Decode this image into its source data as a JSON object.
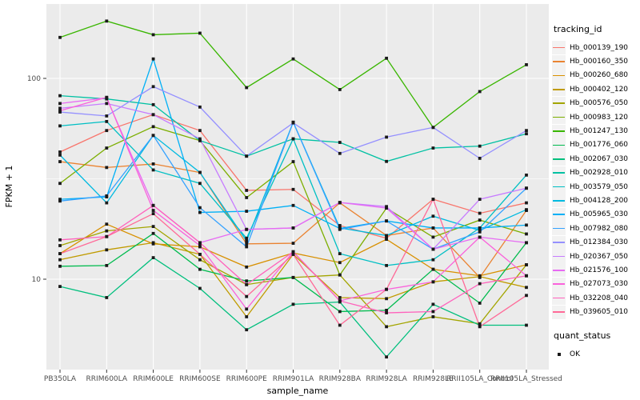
{
  "figure": {
    "panel_bg": "#EBEBEB",
    "grid_color": "#FFFFFF",
    "tick_mark_color": "#333333",
    "tick_label_color": "#4D4D4D",
    "axis_title_color": "#000000",
    "point_color": "#1A1A1A"
  },
  "chart_data": {
    "type": "line",
    "title": "",
    "xlabel": "sample_name",
    "ylabel": "FPKM + 1",
    "y_scale": "log10",
    "y_tick_labels": [
      "100",
      "10"
    ],
    "y_ticks": [
      100,
      10
    ],
    "y_minor_ticks": [
      31.6
    ],
    "ylim": [
      3.5,
      235
    ],
    "grid": true,
    "marker": "square",
    "legend_position": "right",
    "categories": [
      "PB350LA",
      "RRIM600LA",
      "RRIM600LE",
      "RRIM600SE",
      "RRIM600PE",
      "RRIM901LA",
      "RRIM928BA",
      "RRIM928LA",
      "RRIM928LE",
      "RRII105LA_Control",
      "RRII105LA_Stressed"
    ],
    "series": [
      {
        "name": "Hb_000139_190",
        "color": "#F8766D",
        "values": [
          43,
          55,
          66,
          55,
          27.7,
          28,
          18.5,
          16,
          25,
          21.3,
          24
        ]
      },
      {
        "name": "Hb_000160_350",
        "color": "#EA8331",
        "values": [
          38.5,
          36,
          37.5,
          34,
          15,
          15.1,
          24,
          16.5,
          18,
          10.2,
          22
        ]
      },
      {
        "name": "Hb_000260_680",
        "color": "#D89000",
        "values": [
          13.4,
          18.8,
          15,
          14.5,
          11.5,
          13.5,
          12.1,
          15.8,
          11.2,
          10.4,
          11.8
        ]
      },
      {
        "name": "Hb_000402_120",
        "color": "#C09B00",
        "values": [
          12.5,
          14,
          15.2,
          13.3,
          6.5,
          13.3,
          8.1,
          8,
          9.7,
          10.3,
          9.1
        ]
      },
      {
        "name": "Hb_000576_050",
        "color": "#A3A500",
        "values": [
          14.7,
          17.4,
          18.3,
          12.5,
          9.4,
          10.2,
          10.5,
          5.8,
          6.5,
          6,
          11.8
        ]
      },
      {
        "name": "Hb_000983_120",
        "color": "#7CAE00",
        "values": [
          30,
          45,
          57.5,
          49,
          25.5,
          38.5,
          10.5,
          22.6,
          16.2,
          19.7,
          16.8
        ]
      },
      {
        "name": "Hb_001247_130",
        "color": "#39B600",
        "values": [
          160,
          193,
          165,
          168,
          90,
          125,
          88,
          126,
          57,
          86,
          117
        ]
      },
      {
        "name": "Hb_001776_060",
        "color": "#00BB4E",
        "values": [
          11.6,
          11.7,
          16.9,
          11.2,
          9.8,
          10.2,
          6.9,
          7,
          11.2,
          7.6,
          15.2
        ]
      },
      {
        "name": "Hb_002067_030",
        "color": "#00BF7D",
        "values": [
          9.2,
          8.1,
          12.8,
          9,
          5.6,
          7.5,
          7.7,
          4.1,
          7.5,
          5.9,
          5.9
        ]
      },
      {
        "name": "Hb_002928_010",
        "color": "#00C1A3",
        "values": [
          82,
          79,
          74,
          49,
          41,
          50,
          48,
          38.6,
          45,
          46,
          53
        ]
      },
      {
        "name": "Hb_003579_050",
        "color": "#00BFC4",
        "values": [
          58,
          61,
          35,
          30,
          16,
          50,
          13.4,
          11.7,
          12.5,
          18,
          33
        ]
      },
      {
        "name": "Hb_004128_200",
        "color": "#00BAE0",
        "values": [
          41.5,
          24,
          52,
          34,
          15.5,
          60.5,
          18,
          16.5,
          20.6,
          17.5,
          22.2
        ]
      },
      {
        "name": "Hb_005965_030",
        "color": "#00B0F6",
        "values": [
          25,
          25.7,
          125,
          21.5,
          21.8,
          23.3,
          17.9,
          19.5,
          18,
          18,
          18.6
        ]
      },
      {
        "name": "Hb_007982_080",
        "color": "#35A2FF",
        "values": [
          24.5,
          26,
          52,
          22.7,
          14.5,
          60.5,
          17.7,
          19.5,
          14.1,
          17.2,
          28.4
        ]
      },
      {
        "name": "Hb_012384_030",
        "color": "#9590FF",
        "values": [
          68,
          65,
          91,
          72,
          41,
          60,
          42.3,
          51,
          57,
          40,
          55
        ]
      },
      {
        "name": "Hb_020367_050",
        "color": "#C77CFF",
        "values": [
          71,
          75,
          66,
          50,
          17.7,
          18,
          24.1,
          23,
          14.1,
          25,
          28.4
        ]
      },
      {
        "name": "Hb_021576_100",
        "color": "#E76BF3",
        "values": [
          75,
          80,
          23.3,
          15.2,
          17.7,
          18,
          24.1,
          22.6,
          14.1,
          16.2,
          15.2
        ]
      },
      {
        "name": "Hb_027073_030",
        "color": "#FA62DB",
        "values": [
          69,
          80.5,
          22,
          14.7,
          7.1,
          13.7,
          7.8,
          8.9,
          9.7,
          16.2,
          10.4
        ]
      },
      {
        "name": "Hb_032208_040",
        "color": "#FF62BC",
        "values": [
          15.7,
          16.3,
          23.3,
          15.2,
          9.4,
          13.7,
          7.8,
          6.8,
          6.9,
          9.5,
          10.4
        ]
      },
      {
        "name": "Hb_039605_010",
        "color": "#FF6A98",
        "values": [
          13.4,
          16.3,
          21.2,
          13.3,
          8.2,
          13.3,
          5.9,
          8.9,
          25,
          5.8,
          8.3
        ]
      }
    ],
    "legend_title": "tracking_id",
    "legend2_title": "quant_status",
    "legend2_items": [
      {
        "label": "OK"
      }
    ]
  }
}
